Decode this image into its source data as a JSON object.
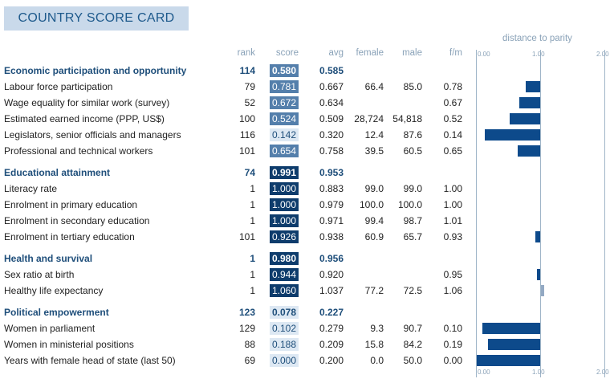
{
  "title": "COUNTRY SCORE CARD",
  "headers": {
    "rank": "rank",
    "score": "score",
    "avg": "avg",
    "female": "female",
    "male": "male",
    "fm": "f/m",
    "distance": "distance to parity"
  },
  "axis_ticks": [
    "0.00",
    "1.00",
    "2.00"
  ],
  "colors": {
    "bar_dark": "#0d4a8b",
    "bar_light": "#93a9c3",
    "score_dark": "#0e3c6c",
    "score_mid": "#547fab",
    "score_light": "#dde8f3"
  },
  "rows": [
    {
      "type": "section",
      "label": "Economic participation and opportunity",
      "rank": "114",
      "score": "0.580",
      "avg": "0.585",
      "female": "",
      "male": "",
      "fm": "",
      "score_value": 0.58
    },
    {
      "type": "item",
      "label": "Labour force participation",
      "rank": "79",
      "score": "0.781",
      "avg": "0.667",
      "female": "66.4",
      "male": "85.0",
      "fm": "0.78",
      "score_value": 0.781,
      "fm_value": 0.78
    },
    {
      "type": "item",
      "label": "Wage equality for similar work (survey)",
      "rank": "52",
      "score": "0.672",
      "avg": "0.634",
      "female": "",
      "male": "",
      "fm": "0.67",
      "score_value": 0.672,
      "fm_value": 0.67
    },
    {
      "type": "item",
      "label": "Estimated earned income (PPP, US$)",
      "rank": "100",
      "score": "0.524",
      "avg": "0.509",
      "female": "28,724",
      "male": "54,818",
      "fm": "0.52",
      "score_value": 0.524,
      "fm_value": 0.52
    },
    {
      "type": "item",
      "label": "Legislators, senior officials and managers",
      "rank": "116",
      "score": "0.142",
      "avg": "0.320",
      "female": "12.4",
      "male": "87.6",
      "fm": "0.14",
      "score_value": 0.142,
      "fm_value": 0.14
    },
    {
      "type": "item",
      "label": "Professional and technical workers",
      "rank": "101",
      "score": "0.654",
      "avg": "0.758",
      "female": "39.5",
      "male": "60.5",
      "fm": "0.65",
      "score_value": 0.654,
      "fm_value": 0.65
    },
    {
      "type": "section",
      "label": "Educational attainment",
      "rank": "74",
      "score": "0.991",
      "avg": "0.953",
      "female": "",
      "male": "",
      "fm": "",
      "score_value": 0.991
    },
    {
      "type": "item",
      "label": "Literacy rate",
      "rank": "1",
      "score": "1.000",
      "avg": "0.883",
      "female": "99.0",
      "male": "99.0",
      "fm": "1.00",
      "score_value": 1.0,
      "fm_value": 1.0
    },
    {
      "type": "item",
      "label": "Enrolment in primary education",
      "rank": "1",
      "score": "1.000",
      "avg": "0.979",
      "female": "100.0",
      "male": "100.0",
      "fm": "1.00",
      "score_value": 1.0,
      "fm_value": 1.0
    },
    {
      "type": "item",
      "label": "Enrolment in secondary education",
      "rank": "1",
      "score": "1.000",
      "avg": "0.971",
      "female": "99.4",
      "male": "98.7",
      "fm": "1.01",
      "score_value": 1.0,
      "fm_value": 1.01
    },
    {
      "type": "item",
      "label": "Enrolment in tertiary education",
      "rank": "101",
      "score": "0.926",
      "avg": "0.938",
      "female": "60.9",
      "male": "65.7",
      "fm": "0.93",
      "score_value": 0.926,
      "fm_value": 0.93
    },
    {
      "type": "section",
      "label": "Health and survival",
      "rank": "1",
      "score": "0.980",
      "avg": "0.956",
      "female": "",
      "male": "",
      "fm": "",
      "score_value": 0.98
    },
    {
      "type": "item",
      "label": "Sex ratio at birth",
      "rank": "1",
      "score": "0.944",
      "avg": "0.920",
      "female": "",
      "male": "",
      "fm": "0.95",
      "score_value": 0.944,
      "fm_value": 0.95
    },
    {
      "type": "item",
      "label": "Healthy life expectancy",
      "rank": "1",
      "score": "1.060",
      "avg": "1.037",
      "female": "77.2",
      "male": "72.5",
      "fm": "1.06",
      "score_value": 1.06,
      "fm_value": 1.06
    },
    {
      "type": "section",
      "label": "Political empowerment",
      "rank": "123",
      "score": "0.078",
      "avg": "0.227",
      "female": "",
      "male": "",
      "fm": "",
      "score_value": 0.078
    },
    {
      "type": "item",
      "label": "Women in parliament",
      "rank": "129",
      "score": "0.102",
      "avg": "0.279",
      "female": "9.3",
      "male": "90.7",
      "fm": "0.10",
      "score_value": 0.102,
      "fm_value": 0.1
    },
    {
      "type": "item",
      "label": "Women in ministerial positions",
      "rank": "88",
      "score": "0.188",
      "avg": "0.209",
      "female": "15.8",
      "male": "84.2",
      "fm": "0.19",
      "score_value": 0.188,
      "fm_value": 0.19
    },
    {
      "type": "item",
      "label": "Years with female head of state (last 50)",
      "rank": "69",
      "score": "0.000",
      "avg": "0.200",
      "female": "0.0",
      "male": "50.0",
      "fm": "0.00",
      "score_value": 0.0,
      "fm_value": 0.0
    }
  ]
}
